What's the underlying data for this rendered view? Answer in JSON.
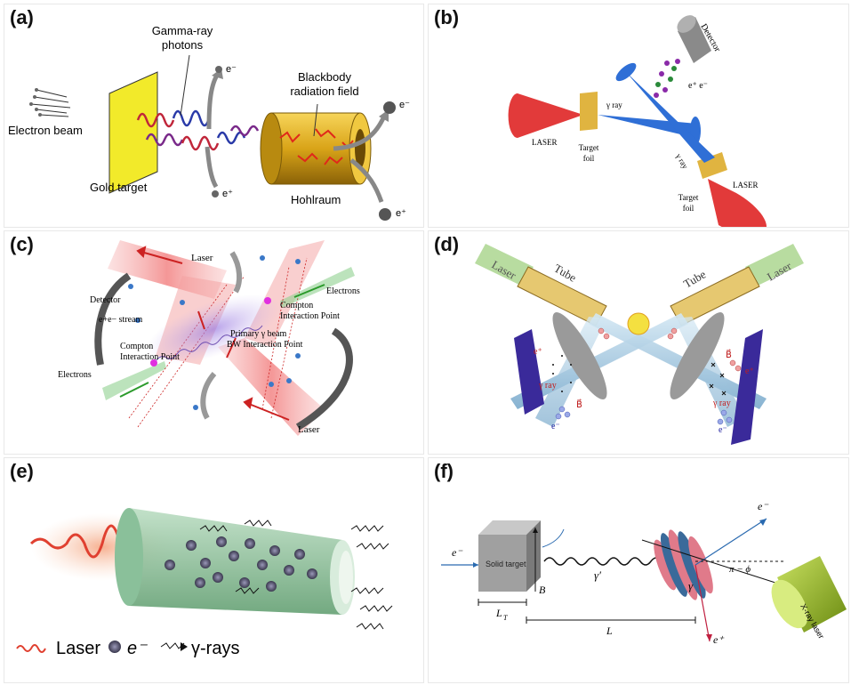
{
  "panels": {
    "a": {
      "label": "(a)",
      "gamma_line1": "Gamma-ray",
      "gamma_line2": "photons",
      "electron_beam": "Electron beam",
      "gold_target": "Gold target",
      "bb_line1": "Blackbody",
      "bb_line2": "radiation field",
      "hohlraum": "Hohlraum",
      "e_minus": "e⁻",
      "e_plus": "e⁺",
      "gold_color": "#f2ea2a",
      "hohlraum_color": "#d9a418"
    },
    "b": {
      "label": "(b)",
      "detector": "Detector",
      "pair": "e⁺ e⁻",
      "gamma1": "γ ray",
      "gamma2": "γ ray",
      "laser1": "LASER",
      "laser2": "LASER",
      "foil1_line1": "Target",
      "foil1_line2": "foil",
      "foil2_line1": "Target",
      "foil2_line2": "foil",
      "laser_color": "#e23a3a",
      "gamma_color": "#2f6fd6"
    },
    "c": {
      "label": "(c)",
      "laser_top": "Laser",
      "laser_bottom": "Laser",
      "detector": "Detector",
      "stream": "e+e− stream",
      "electrons_right": "Electrons",
      "electrons_left": "Electrons",
      "compton_r1": "Compton",
      "compton_r2": "Interaction Point",
      "compton_l1": "Compton",
      "compton_l2": "Interaction Point",
      "primary": "Primary γ beam",
      "bw": "BW Interaction Point"
    },
    "d": {
      "label": "(d)",
      "laser_left": "Laser",
      "laser_right": "Laser",
      "tube_left": "Tube",
      "tube_right": "Tube",
      "eplus": "e⁺",
      "eminus_left": "e⁻",
      "eminus_right": "e⁻",
      "eplus_right": "e⁺",
      "gamma_left": "γ ray",
      "gamma_right": "γ ray",
      "b_left": "B⃗",
      "b_right": "B⃗"
    },
    "e": {
      "label": "(e)",
      "legend_laser": "Laser",
      "legend_e": "e⁻",
      "legend_gamma": "γ-rays"
    },
    "f": {
      "label": "(f)",
      "e_in": "e⁻",
      "solid_target": "Solid target",
      "b": "B⃗",
      "gamma_prime": "γ′",
      "gamma": "γ",
      "e_out_minus": "e⁻",
      "e_out_plus": "e⁺",
      "angle": "π − ϕ",
      "xray": "X-ray laser",
      "lt": "L",
      "lt_sub": "T",
      "l": "L"
    }
  }
}
